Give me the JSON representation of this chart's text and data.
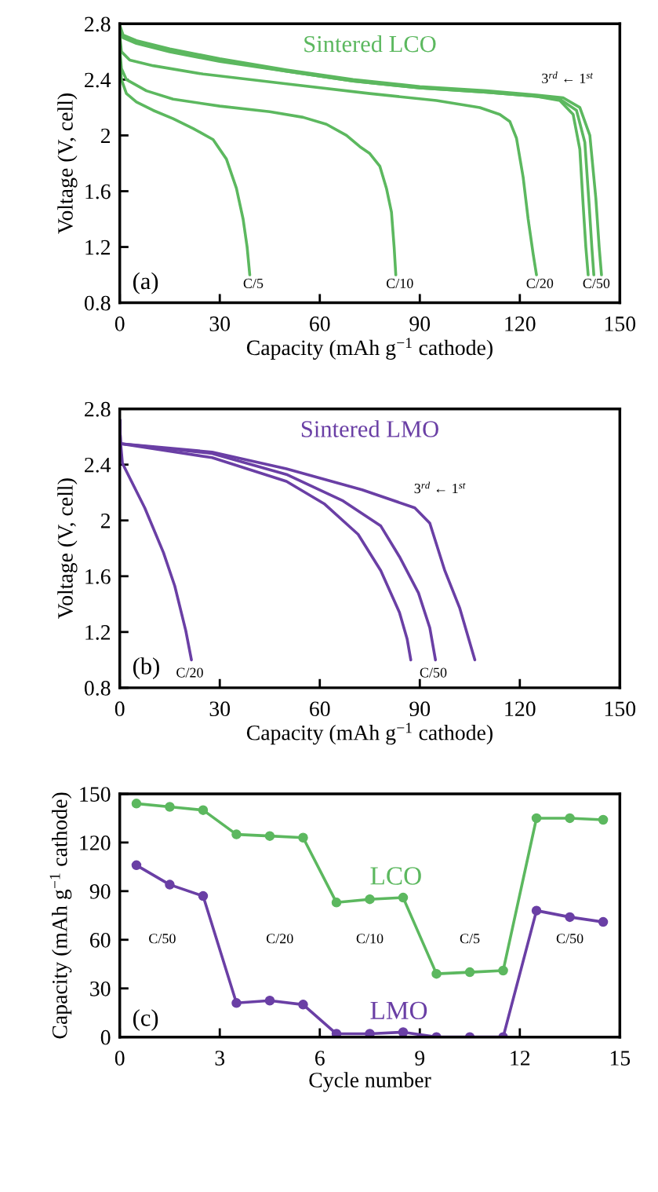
{
  "chart_data": [
    {
      "type": "line",
      "title": "Sintered LCO",
      "xlabel": "Capacity (mAh g$^{−1}$ cathode)",
      "ylabel": "Voltage (V, cell)",
      "xlim": [
        0,
        150
      ],
      "xticks": [
        0,
        30,
        60,
        90,
        120,
        150
      ],
      "ylim": [
        0.8,
        2.8
      ],
      "yticks": [
        0.8,
        1.2,
        1.6,
        2,
        2.4,
        2.8
      ],
      "grid": false,
      "legend": false,
      "marker": "none",
      "line_style": "solid",
      "series": [
        {
          "color": "#5cb85f",
          "x": [
            0,
            0.5,
            2,
            5,
            10,
            16,
            22,
            28,
            32,
            35,
            37,
            38.2,
            39
          ],
          "values": [
            2.55,
            2.4,
            2.3,
            2.24,
            2.18,
            2.12,
            2.05,
            1.97,
            1.83,
            1.62,
            1.4,
            1.2,
            1.0
          ]
        },
        {
          "color": "#5cb85f",
          "x": [
            0,
            0.5,
            2,
            8,
            16,
            30,
            45,
            55,
            62,
            68,
            72,
            75,
            78,
            80,
            81.5,
            82.3,
            82.8
          ],
          "values": [
            2.62,
            2.48,
            2.4,
            2.32,
            2.26,
            2.21,
            2.17,
            2.13,
            2.08,
            2.0,
            1.92,
            1.87,
            1.78,
            1.62,
            1.45,
            1.2,
            1.0
          ]
        },
        {
          "color": "#5cb85f",
          "x": [
            0,
            0.5,
            3,
            10,
            25,
            50,
            75,
            95,
            108,
            114,
            117,
            119,
            121,
            122.5,
            124,
            125
          ],
          "values": [
            2.72,
            2.6,
            2.54,
            2.5,
            2.44,
            2.37,
            2.3,
            2.25,
            2.2,
            2.15,
            2.1,
            1.98,
            1.7,
            1.4,
            1.15,
            1.0
          ]
        },
        {
          "color": "#5cb85f",
          "x": [
            0,
            1,
            5,
            15,
            30,
            50,
            70,
            90,
            110,
            125,
            132,
            136,
            138,
            139,
            139.8,
            140.5
          ],
          "values": [
            2.78,
            2.7,
            2.66,
            2.6,
            2.53,
            2.46,
            2.39,
            2.34,
            2.31,
            2.28,
            2.25,
            2.15,
            1.9,
            1.5,
            1.2,
            1.0
          ]
        },
        {
          "color": "#5cb85f",
          "x": [
            0,
            1,
            5,
            15,
            30,
            50,
            70,
            90,
            110,
            125,
            132,
            137,
            139.5,
            140.8,
            141.6,
            142.2
          ],
          "values": [
            2.78,
            2.71,
            2.67,
            2.61,
            2.54,
            2.46,
            2.39,
            2.34,
            2.31,
            2.28,
            2.26,
            2.18,
            1.95,
            1.5,
            1.2,
            1.0
          ]
        },
        {
          "color": "#5cb85f",
          "x": [
            0,
            1,
            5,
            15,
            30,
            50,
            70,
            90,
            110,
            125,
            133,
            138,
            141,
            142.8,
            143.8,
            144.5
          ],
          "values": [
            2.79,
            2.72,
            2.68,
            2.62,
            2.55,
            2.47,
            2.4,
            2.35,
            2.32,
            2.29,
            2.27,
            2.2,
            2.0,
            1.55,
            1.2,
            1.0
          ]
        }
      ],
      "annotations": [
        "(a)",
        "C/5",
        "C/10",
        "C/20",
        "C/50",
        "3$^{rd}$ ← 1$^{st}$"
      ]
    },
    {
      "type": "line",
      "title": "Sintered LMO",
      "xlabel": "Capacity (mAh g$^{−1}$ cathode)",
      "ylabel": "Voltage (V, cell)",
      "xlim": [
        0,
        150
      ],
      "xticks": [
        0,
        30,
        60,
        90,
        120,
        150
      ],
      "ylim": [
        0.8,
        2.8
      ],
      "yticks": [
        0.8,
        1.2,
        1.6,
        2,
        2.4,
        2.8
      ],
      "grid": false,
      "legend": false,
      "marker": "none",
      "line_style": "solid",
      "series": [
        {
          "color": "#6a3fa5",
          "x": [
            0,
            0.2,
            0.8,
            7.5,
            13.1,
            16.5,
            19.8,
            21.5
          ],
          "values": [
            2.72,
            2.57,
            2.41,
            2.09,
            1.77,
            1.53,
            1.21,
            1.0
          ]
        },
        {
          "color": "#6a3fa5",
          "x": [
            0,
            0.2,
            27.7,
            50,
            61.3,
            71.5,
            78.3,
            83.9,
            86.2,
            87.3
          ],
          "values": [
            2.72,
            2.55,
            2.45,
            2.28,
            2.12,
            1.9,
            1.64,
            1.34,
            1.15,
            1.0
          ]
        },
        {
          "color": "#6a3fa5",
          "x": [
            0,
            0.2,
            27.7,
            50,
            67,
            78.3,
            83.9,
            89.6,
            93,
            94.7
          ],
          "values": [
            2.72,
            2.55,
            2.48,
            2.33,
            2.14,
            1.96,
            1.74,
            1.48,
            1.23,
            1.0
          ]
        },
        {
          "color": "#6a3fa5",
          "x": [
            0,
            0.2,
            27.7,
            50,
            72.7,
            88.5,
            93,
            97.5,
            102,
            106.5
          ],
          "values": [
            2.72,
            2.55,
            2.49,
            2.37,
            2.22,
            2.09,
            1.98,
            1.64,
            1.37,
            1.0
          ]
        }
      ],
      "annotations": [
        "(b)",
        "C/20",
        "C/50",
        "3$^{rd}$ ← 1$^{st}$"
      ]
    },
    {
      "type": "line",
      "xlabel": "Cycle number",
      "ylabel": "Capacity (mAh g$^{−1}$ cathode)",
      "x": [
        0.5,
        1.5,
        2.5,
        3.5,
        4.5,
        5.5,
        6.5,
        7.5,
        8.5,
        9.5,
        10.5,
        11.5,
        12.5,
        13.5,
        14.5
      ],
      "xlim": [
        0,
        15
      ],
      "xticks": [
        0,
        3,
        6,
        9,
        12,
        15
      ],
      "ylim": [
        0,
        150
      ],
      "yticks": [
        0,
        30,
        60,
        90,
        120,
        150
      ],
      "grid": false,
      "legend": false,
      "marker": "circle",
      "line_style": "solid",
      "series": [
        {
          "name": "LCO",
          "color": "#5cb85f",
          "values": [
            144,
            142,
            140,
            125,
            124,
            123,
            83,
            85,
            86,
            39,
            40,
            41,
            135,
            135,
            134
          ]
        },
        {
          "name": "LMO",
          "color": "#6a3fa5",
          "values": [
            106,
            94,
            87,
            21,
            22.5,
            20,
            2,
            2,
            3,
            0,
            0,
            0,
            78,
            74,
            71
          ]
        }
      ],
      "annotations": [
        "(c)",
        "C/50",
        "C/20",
        "C/10",
        "C/5",
        "C/50"
      ]
    }
  ]
}
